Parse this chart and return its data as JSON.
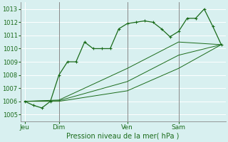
{
  "background_color": "#cce8e8",
  "plot_bg": "#d8f0f0",
  "grid_color": "#ffffff",
  "line_color": "#1a6b1a",
  "title": "Pression niveau de la mer( hPa )",
  "x_tick_labels": [
    "Jeu",
    "Dim",
    "Ven",
    "Sam"
  ],
  "x_tick_positions": [
    0,
    4,
    12,
    18
  ],
  "ylim": [
    1004.5,
    1013.5
  ],
  "yticks": [
    1005,
    1006,
    1007,
    1008,
    1009,
    1010,
    1011,
    1012,
    1013
  ],
  "series1_x": [
    0,
    1,
    2,
    3,
    4,
    5,
    6,
    7,
    8,
    9,
    10,
    11,
    12,
    13,
    14,
    15,
    16,
    17,
    18,
    19,
    20,
    21,
    22,
    23
  ],
  "series1": [
    1006.0,
    1005.7,
    1005.5,
    1006.0,
    1008.0,
    1009.0,
    1009.0,
    1010.5,
    1010.0,
    1010.0,
    1010.0,
    1011.5,
    1011.9,
    1012.0,
    1012.1,
    1012.0,
    1011.5,
    1010.9,
    1011.3,
    1012.3,
    1012.3,
    1013.0,
    1011.7,
    1010.3
  ],
  "series2_x": [
    0,
    4,
    12,
    18,
    23
  ],
  "series2": [
    1006.0,
    1006.1,
    1008.5,
    1010.5,
    1010.3
  ],
  "series3_x": [
    0,
    4,
    12,
    18,
    23
  ],
  "series3": [
    1006.0,
    1006.05,
    1007.5,
    1009.5,
    1010.3
  ],
  "series4_x": [
    0,
    4,
    12,
    18,
    23
  ],
  "series4": [
    1006.0,
    1006.0,
    1006.8,
    1008.5,
    1010.3
  ],
  "vline_positions": [
    4,
    12,
    18
  ],
  "n_points": 24,
  "figw": 3.2,
  "figh": 2.0,
  "dpi": 100
}
